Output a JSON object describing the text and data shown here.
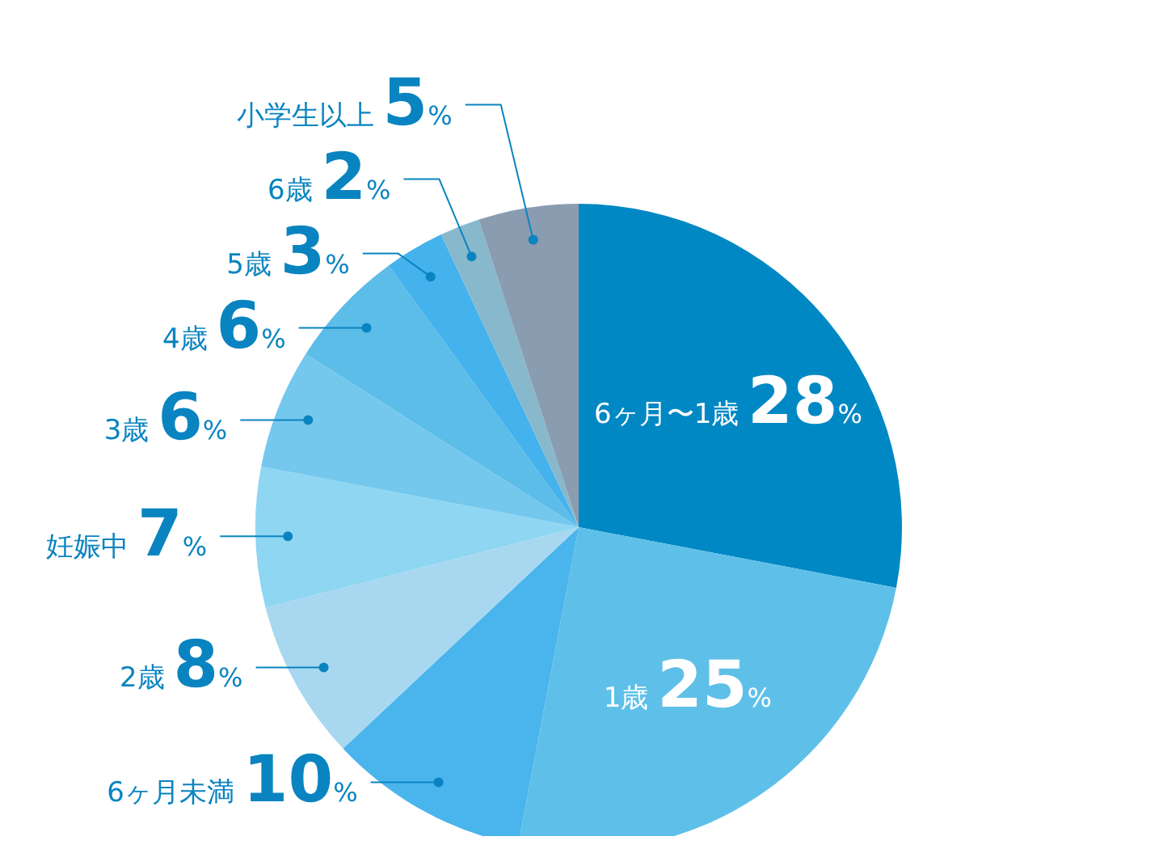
{
  "chart_data": {
    "type": "pie",
    "categories": [
      "6ヶ月〜1歳",
      "1歳",
      "6ヶ月未満",
      "2歳",
      "妊娠中",
      "3歳",
      "4歳",
      "5歳",
      "6歳",
      "小学生以上"
    ],
    "values": [
      28,
      25,
      10,
      8,
      7,
      6,
      6,
      3,
      2,
      5
    ],
    "colors": [
      "#0088c4",
      "#5ec0e8",
      "#4ab4ec",
      "#a8d8f0",
      "#8ed6f2",
      "#74c8ee",
      "#5cbde8",
      "#44b2ec",
      "#88b8cc",
      "#8a9cb0"
    ],
    "value_labels": [
      "28%",
      "25%",
      "10%",
      "8%",
      "7%",
      "6%",
      "6%",
      "3%",
      "2%",
      "5%"
    ]
  }
}
